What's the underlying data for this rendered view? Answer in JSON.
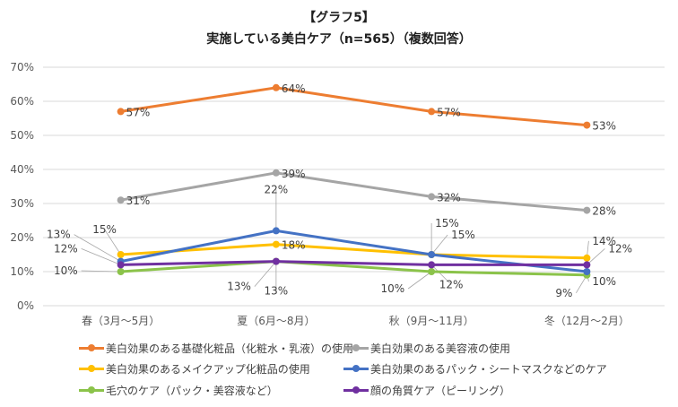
{
  "chart_data": {
    "type": "line",
    "title": "【グラフ5】",
    "subtitle": "実施している美白ケア（n=565）（複数回答）",
    "xlabel": "",
    "ylabel": "",
    "ylim": [
      0,
      70
    ],
    "y_ticks": [
      "0%",
      "10%",
      "20%",
      "30%",
      "40%",
      "50%",
      "60%",
      "70%"
    ],
    "grid": true,
    "legend_position": "bottom",
    "categories": [
      "春（3月～5月）",
      "夏（6月～8月）",
      "秋（9月～11月）",
      "冬（12月～2月）"
    ],
    "series": [
      {
        "name": "美白効果のある基礎化粧品（化粧水・乳液）の使用",
        "color": "#ED7D31",
        "values": [
          57,
          64,
          57,
          53
        ],
        "labels": [
          "57%",
          "64%",
          "57%",
          "53%"
        ]
      },
      {
        "name": "美白効果のある美容液の使用",
        "color": "#A5A5A5",
        "values": [
          31,
          39,
          32,
          28
        ],
        "labels": [
          "31%",
          "39%",
          "32%",
          "28%"
        ]
      },
      {
        "name": "美白効果のあるメイクアップ化粧品の使用",
        "color": "#FFC000",
        "values": [
          15,
          18,
          15,
          14
        ],
        "labels": [
          "15%",
          "18%",
          "15%",
          "14%"
        ]
      },
      {
        "name": "美白効果のあるパック・シートマスクなどのケア",
        "color": "#4472C4",
        "values": [
          13,
          22,
          15,
          10
        ],
        "labels": [
          "13%",
          "22%",
          "15%",
          "10%"
        ]
      },
      {
        "name": "毛穴のケア（パック・美容液など）",
        "color": "#8BC34A",
        "values": [
          10,
          13,
          10,
          9
        ],
        "labels": [
          "10%",
          "13%",
          "10%",
          "9%"
        ]
      },
      {
        "name": "顔の角質ケア（ピーリング）",
        "color": "#7030A0",
        "values": [
          12,
          13,
          12,
          12
        ],
        "labels": [
          "12%",
          "13%",
          "12%",
          "12%"
        ]
      }
    ]
  }
}
